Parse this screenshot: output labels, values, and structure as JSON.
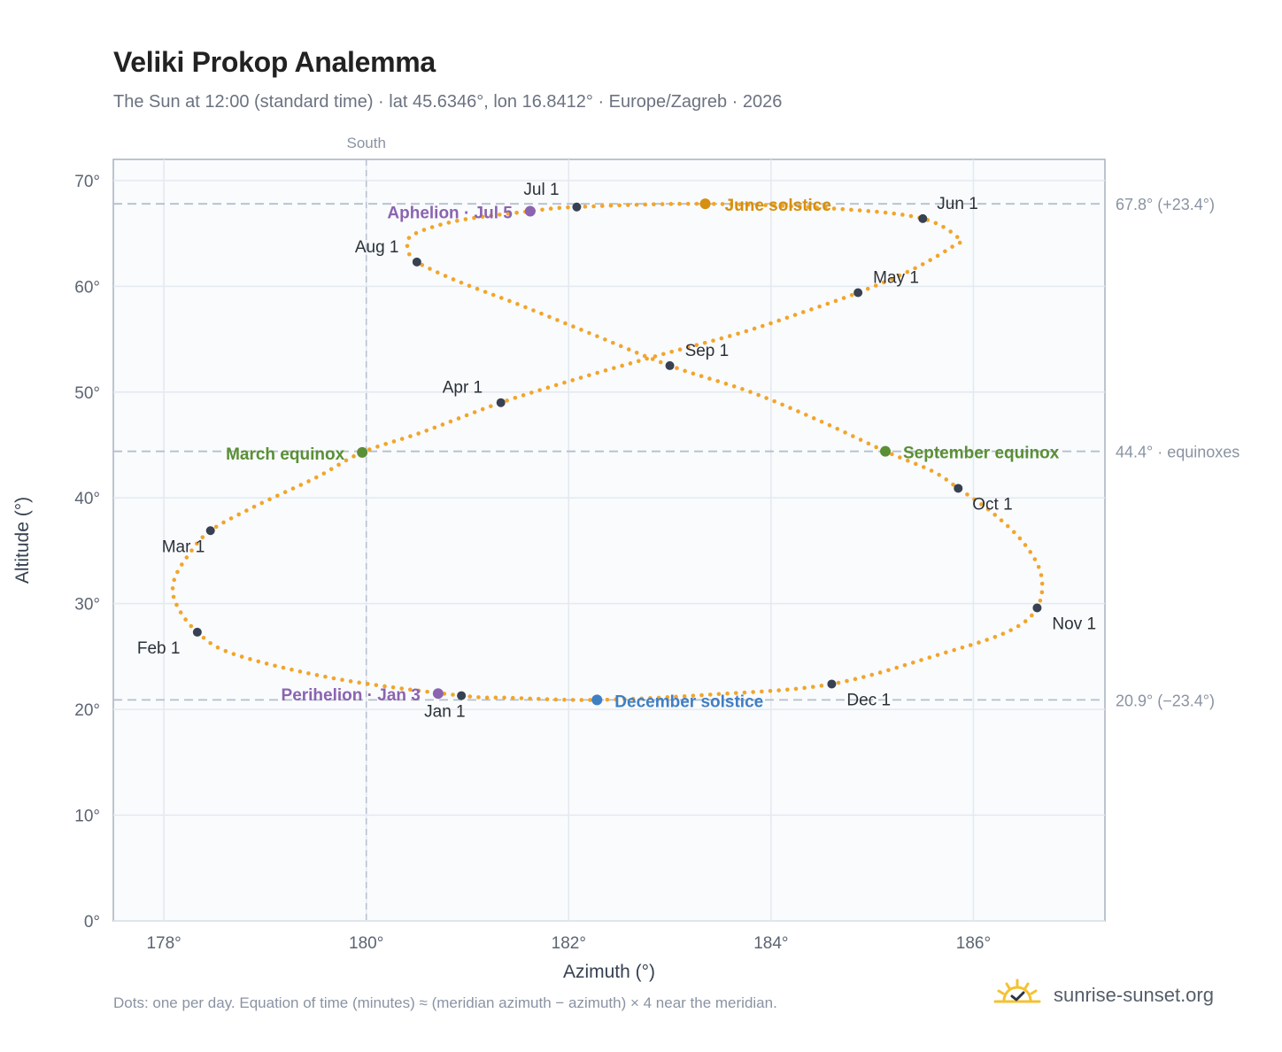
{
  "header": {
    "title": "Veliki Prokop Analemma",
    "subtitle": "The Sun at 12:00 (standard time) · lat 45.6346°, lon 16.8412° · Europe/Zagreb · 2026"
  },
  "footer": {
    "note": "Dots: one per day. Equation of time (minutes) ≈ (meridian azimuth − azimuth) × 4 near the meridian.",
    "brand": "sunrise-sunset.org"
  },
  "icons": {
    "logo": "sun-check-icon"
  },
  "colors": {
    "curve": "#f2a52a",
    "month_marker": "#374151",
    "equinox": "#5a8f35",
    "june_solstice": "#d68f0e",
    "december_solstice": "#3f7fc4",
    "aphelion_perihelion": "#8b64b0",
    "reference_line": "#b5bfcc"
  },
  "chart_data": {
    "type": "scatter",
    "xlabel": "Azimuth (°)",
    "ylabel": "Altitude (°)",
    "xlim": [
      177.5,
      187.3
    ],
    "ylim": [
      0,
      72
    ],
    "x_ticks": [
      178,
      180,
      182,
      184,
      186
    ],
    "y_ticks": [
      0,
      10,
      20,
      30,
      40,
      50,
      60,
      70
    ],
    "x_tick_suffix": "°",
    "y_tick_suffix": "°",
    "grid": true,
    "meridian": {
      "azimuth": 180,
      "label": "South"
    },
    "reference_lines": [
      {
        "altitude": 67.8,
        "label": "67.8° (+23.4°)"
      },
      {
        "altitude": 44.4,
        "label": "44.4° · equinoxes"
      },
      {
        "altitude": 20.9,
        "label": "20.9° (−23.4°)"
      }
    ],
    "month_markers": [
      {
        "label": "Jan 1",
        "azimuth": 180.94,
        "altitude": 21.3
      },
      {
        "label": "Feb 1",
        "azimuth": 178.33,
        "altitude": 27.3
      },
      {
        "label": "Mar 1",
        "azimuth": 178.46,
        "altitude": 36.9
      },
      {
        "label": "Apr 1",
        "azimuth": 181.33,
        "altitude": 49.0
      },
      {
        "label": "May 1",
        "azimuth": 184.86,
        "altitude": 59.4
      },
      {
        "label": "Jun 1",
        "azimuth": 185.5,
        "altitude": 66.4
      },
      {
        "label": "Jul 1",
        "azimuth": 182.08,
        "altitude": 67.5
      },
      {
        "label": "Aug 1",
        "azimuth": 180.5,
        "altitude": 62.3
      },
      {
        "label": "Sep 1",
        "azimuth": 183.0,
        "altitude": 52.5
      },
      {
        "label": "Oct 1",
        "azimuth": 185.85,
        "altitude": 40.9
      },
      {
        "label": "Nov 1",
        "azimuth": 186.63,
        "altitude": 29.6
      },
      {
        "label": "Dec 1",
        "azimuth": 184.6,
        "altitude": 22.4
      }
    ],
    "events": [
      {
        "label": "March equinox",
        "azimuth": 179.96,
        "altitude": 44.3,
        "kind": "equinox"
      },
      {
        "label": "June solstice",
        "azimuth": 183.35,
        "altitude": 67.8,
        "kind": "june_solstice"
      },
      {
        "label": "September equinox",
        "azimuth": 185.13,
        "altitude": 44.4,
        "kind": "equinox"
      },
      {
        "label": "December solstice",
        "azimuth": 182.28,
        "altitude": 20.9,
        "kind": "december_solstice"
      },
      {
        "label": "Aphelion · Jul 5",
        "azimuth": 181.62,
        "altitude": 67.1,
        "kind": "aphelion_perihelion"
      },
      {
        "label": "Perihelion · Jan 3",
        "azimuth": 180.71,
        "altitude": 21.5,
        "kind": "aphelion_perihelion"
      }
    ],
    "daily_path": [
      [
        180.94,
        21.3
      ],
      [
        179.7,
        22.9
      ],
      [
        178.7,
        25.2
      ],
      [
        178.33,
        27.3
      ],
      [
        178.12,
        30.0
      ],
      [
        178.1,
        32.2
      ],
      [
        178.25,
        34.7
      ],
      [
        178.46,
        36.9
      ],
      [
        178.9,
        39.2
      ],
      [
        179.5,
        41.9
      ],
      [
        179.96,
        44.3
      ],
      [
        180.55,
        46.2
      ],
      [
        181.33,
        49.0
      ],
      [
        182.1,
        51.3
      ],
      [
        182.9,
        53.5
      ],
      [
        183.7,
        55.6
      ],
      [
        184.3,
        57.5
      ],
      [
        184.86,
        59.4
      ],
      [
        185.4,
        61.6
      ],
      [
        185.8,
        63.8
      ],
      [
        185.86,
        64.5
      ],
      [
        185.5,
        66.4
      ],
      [
        184.7,
        67.3
      ],
      [
        183.35,
        67.8
      ],
      [
        182.08,
        67.5
      ],
      [
        181.62,
        67.1
      ],
      [
        180.9,
        66.2
      ],
      [
        180.45,
        64.8
      ],
      [
        180.42,
        63.3
      ],
      [
        180.5,
        62.3
      ],
      [
        180.9,
        60.5
      ],
      [
        181.5,
        58.3
      ],
      [
        182.2,
        55.6
      ],
      [
        183.0,
        52.5
      ],
      [
        183.8,
        50.0
      ],
      [
        184.5,
        47.2
      ],
      [
        185.13,
        44.4
      ],
      [
        185.6,
        42.5
      ],
      [
        185.85,
        40.9
      ],
      [
        186.2,
        38.5
      ],
      [
        186.5,
        35.7
      ],
      [
        186.67,
        32.7
      ],
      [
        186.63,
        29.6
      ],
      [
        186.35,
        27.4
      ],
      [
        185.7,
        25.3
      ],
      [
        184.6,
        22.4
      ],
      [
        183.4,
        21.4
      ],
      [
        182.28,
        20.9
      ],
      [
        181.4,
        21.1
      ],
      [
        180.94,
        21.3
      ]
    ]
  }
}
